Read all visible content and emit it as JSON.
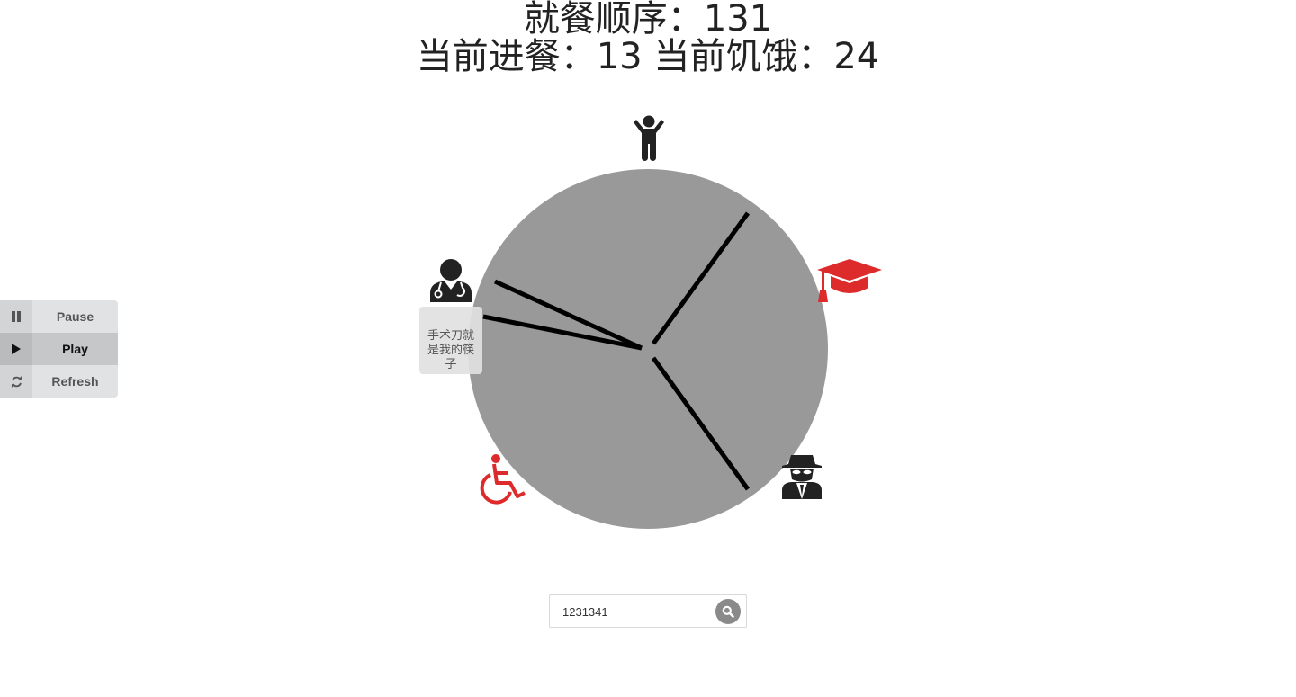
{
  "header": {
    "order_label": "就餐顺序：",
    "order_value": "131",
    "eating_label": "当前进餐：",
    "eating_value": "13",
    "hungry_label": " 当前饥饿：",
    "hungry_value": "24"
  },
  "diners": [
    {
      "icon": "child-icon",
      "color": "#222222"
    },
    {
      "icon": "graduation-cap-icon",
      "color": "#dd2b2b"
    },
    {
      "icon": "spy-icon",
      "color": "#222222"
    },
    {
      "icon": "wheelchair-icon",
      "color": "#dd2b2b"
    },
    {
      "icon": "doctor-icon",
      "color": "#222222"
    }
  ],
  "tooltip": {
    "text": "手术刀就是我的筷子"
  },
  "controls": {
    "pause_label": "Pause",
    "play_label": "Play",
    "refresh_label": "Refresh",
    "active": "Play"
  },
  "search": {
    "value": "1231341",
    "icon": "search-icon"
  },
  "colors": {
    "table": "#999999",
    "chopstick": "#000000",
    "highlight": "#dd2b2b",
    "neutral": "#222222"
  }
}
